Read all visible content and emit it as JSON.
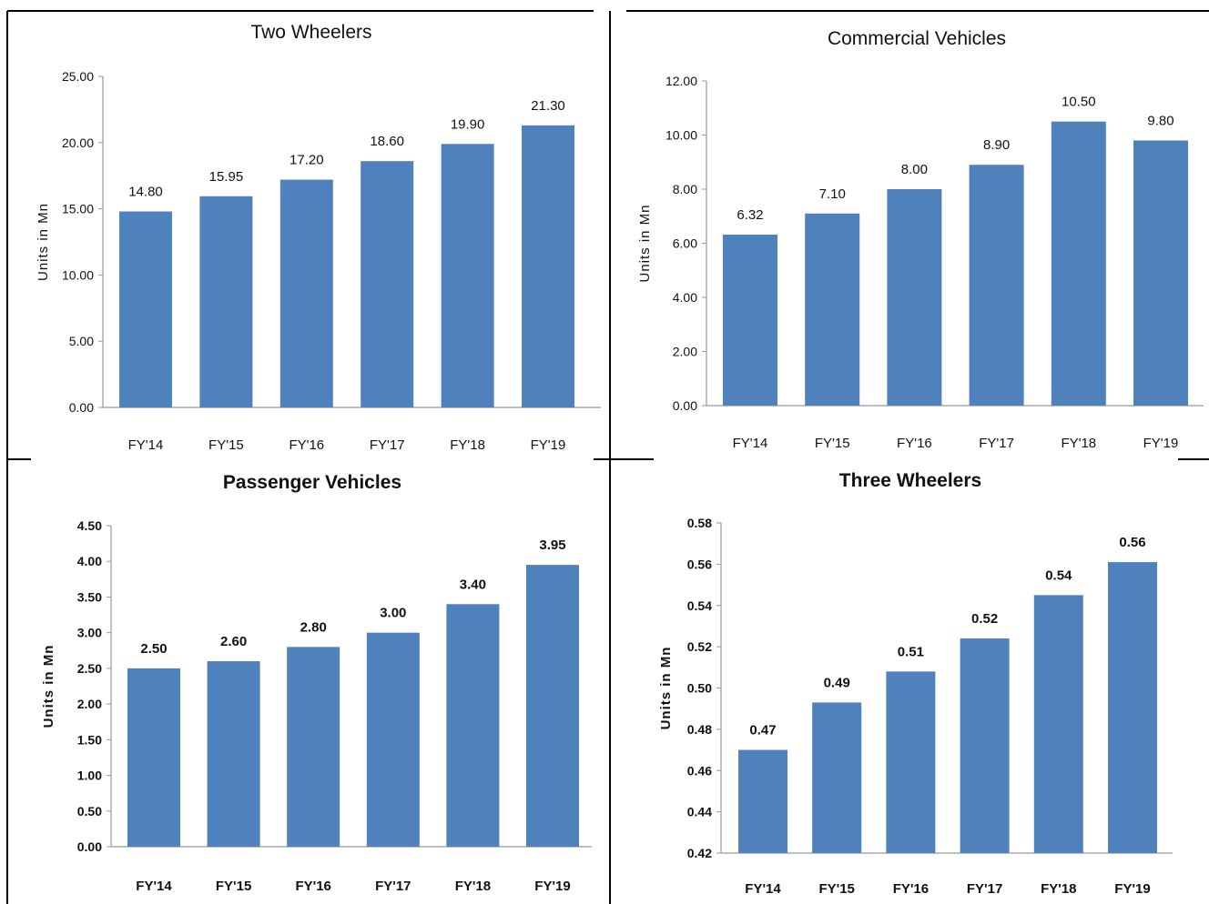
{
  "chart_data": [
    {
      "type": "bar",
      "title": "Two Wheelers",
      "ylabel": "Units in Mn",
      "categories": [
        "FY'14",
        "FY'15",
        "FY'16",
        "FY'17",
        "FY'18",
        "FY'19"
      ],
      "values": [
        14.8,
        15.95,
        17.2,
        18.6,
        19.9,
        21.3
      ],
      "value_labels": [
        "14.80",
        "15.95",
        "17.20",
        "18.60",
        "19.90",
        "21.30"
      ],
      "ylim": [
        0,
        25
      ],
      "yticks": [
        "0.00",
        "5.00",
        "10.00",
        "15.00",
        "20.00",
        "25.00"
      ],
      "grid": false,
      "bar_color": "#4F81BD"
    },
    {
      "type": "bar",
      "title": "Commercial Vehicles",
      "ylabel": "Units in Mn",
      "categories": [
        "FY'14",
        "FY'15",
        "FY'16",
        "FY'17",
        "FY'18",
        "FY'19"
      ],
      "values": [
        6.32,
        7.1,
        8.0,
        8.9,
        10.5,
        9.8
      ],
      "value_labels": [
        "6.32",
        "7.10",
        "8.00",
        "8.90",
        "10.50",
        "9.80"
      ],
      "ylim": [
        0,
        12
      ],
      "yticks": [
        "0.00",
        "2.00",
        "4.00",
        "6.00",
        "8.00",
        "10.00",
        "12.00"
      ],
      "grid": false,
      "bar_color": "#4F81BD"
    },
    {
      "type": "bar",
      "title": "Passenger Vehicles",
      "ylabel": "Units in Mn",
      "categories": [
        "FY'14",
        "FY'15",
        "FY'16",
        "FY'17",
        "FY'18",
        "FY'19"
      ],
      "values": [
        2.5,
        2.6,
        2.8,
        3.0,
        3.4,
        3.95
      ],
      "value_labels": [
        "2.50",
        "2.60",
        "2.80",
        "3.00",
        "3.40",
        "3.95"
      ],
      "ylim": [
        0,
        4.5
      ],
      "yticks": [
        "0.00",
        "0.50",
        "1.00",
        "1.50",
        "2.00",
        "2.50",
        "3.00",
        "3.50",
        "4.00",
        "4.50"
      ],
      "grid": false,
      "bar_color": "#4F81BD"
    },
    {
      "type": "bar",
      "title": "Three Wheelers",
      "ylabel": "Units in Mn",
      "categories": [
        "FY'14",
        "FY'15",
        "FY'16",
        "FY'17",
        "FY'18",
        "FY'19"
      ],
      "values": [
        0.47,
        0.493,
        0.508,
        0.524,
        0.545,
        0.561
      ],
      "value_labels": [
        "0.47",
        "0.49",
        "0.51",
        "0.52",
        "0.54",
        "0.56"
      ],
      "ylim": [
        0.42,
        0.58
      ],
      "yticks": [
        "0.42",
        "0.44",
        "0.46",
        "0.48",
        "0.50",
        "0.52",
        "0.54",
        "0.56",
        "0.58"
      ],
      "grid": false,
      "bar_color": "#4F81BD"
    }
  ]
}
